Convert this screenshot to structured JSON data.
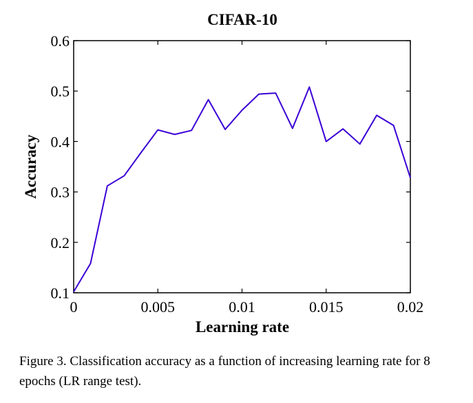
{
  "chart_data": {
    "type": "line",
    "title": "CIFAR-10",
    "xlabel": "Learning rate",
    "ylabel": "Accuracy",
    "xlim": [
      0,
      0.02
    ],
    "ylim": [
      0.1,
      0.6
    ],
    "xticks": [
      "0",
      "0.005",
      "0.01",
      "0.015",
      "0.02"
    ],
    "yticks": [
      "0.1",
      "0.2",
      "0.3",
      "0.4",
      "0.5",
      "0.6"
    ],
    "grid": false,
    "series": [
      {
        "name": "accuracy",
        "color": "#3a00d6",
        "x": [
          0,
          0.001,
          0.002,
          0.003,
          0.004,
          0.005,
          0.006,
          0.007,
          0.008,
          0.009,
          0.01,
          0.011,
          0.012,
          0.013,
          0.014,
          0.015,
          0.016,
          0.017,
          0.018,
          0.019,
          0.02
        ],
        "y": [
          0.102,
          0.158,
          0.312,
          0.332,
          0.378,
          0.423,
          0.414,
          0.422,
          0.483,
          0.424,
          0.462,
          0.494,
          0.496,
          0.426,
          0.508,
          0.4,
          0.425,
          0.395,
          0.452,
          0.432,
          0.328
        ]
      }
    ]
  },
  "caption": "Figure 3. Classification accuracy as a function of increasing learning rate for 8 epochs (LR range test)."
}
